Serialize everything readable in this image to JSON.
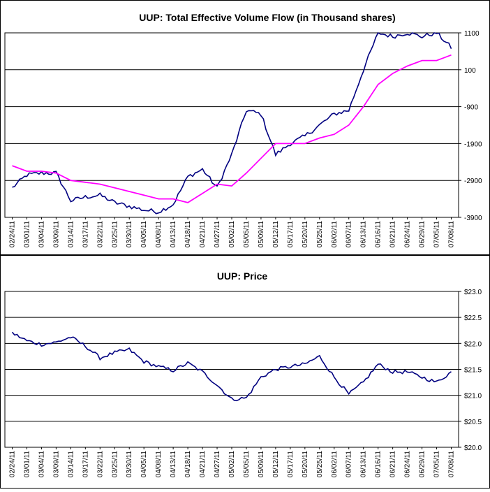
{
  "chart_data": [
    {
      "type": "line",
      "title": "UUP: Total Effective Volume Flow (in Thousand shares)",
      "xlabel": "",
      "ylabel": "",
      "ylim": [
        -3900,
        1100
      ],
      "y_ticks": [
        "1100",
        "100",
        "-900",
        "-1900",
        "-2900",
        "-3900"
      ],
      "y_side": "right",
      "grid": "horizontal",
      "x_tick_labels": [
        "02/24/11",
        "03/01/11",
        "03/04/11",
        "03/09/11",
        "03/14/11",
        "03/17/11",
        "03/22/11",
        "03/25/11",
        "03/30/11",
        "04/05/11",
        "04/08/11",
        "04/13/11",
        "04/18/11",
        "04/21/11",
        "04/27/11",
        "05/02/11",
        "05/05/11",
        "05/09/11",
        "05/12/11",
        "05/17/11",
        "05/20/11",
        "05/25/11",
        "06/02/11",
        "06/07/11",
        "06/13/11",
        "06/16/11",
        "06/21/11",
        "06/24/11",
        "06/29/11",
        "07/05/11",
        "07/08/11"
      ],
      "colors": {
        "series": "#000080",
        "moving_average": "#ff00ff"
      },
      "series": [
        {
          "role": "volume-flow",
          "x": [
            "02/24/11",
            "03/01/11",
            "03/04/11",
            "03/09/11",
            "03/14/11",
            "03/17/11",
            "03/22/11",
            "03/25/11",
            "03/30/11",
            "04/05/11",
            "04/08/11",
            "04/13/11",
            "04/18/11",
            "04/21/11",
            "04/27/11",
            "05/02/11",
            "05/05/11",
            "05/09/11",
            "05/12/11",
            "05/17/11",
            "05/20/11",
            "05/25/11",
            "06/02/11",
            "06/07/11",
            "06/13/11",
            "06/16/11",
            "06/21/11",
            "06/24/11",
            "06/29/11",
            "07/05/11",
            "07/08/11"
          ],
          "values": [
            -3100,
            -2750,
            -2700,
            -2700,
            -3450,
            -3350,
            -3300,
            -3500,
            -3600,
            -3700,
            -3750,
            -3550,
            -2800,
            -2600,
            -3100,
            -2200,
            -1000,
            -1100,
            -2200,
            -1900,
            -1700,
            -1400,
            -1100,
            -1000,
            100,
            1100,
            1000,
            1100,
            1000,
            1100,
            700
          ],
          "moving_average": [
            -2500,
            -2650,
            -2650,
            -2700,
            -2900,
            -2950,
            -3000,
            -3100,
            -3200,
            -3300,
            -3400,
            -3400,
            -3500,
            -3250,
            -3000,
            -3050,
            -2700,
            -2300,
            -1900,
            -1900,
            -1900,
            -1750,
            -1650,
            -1400,
            -900,
            -300,
            0,
            200,
            350,
            350,
            500
          ]
        }
      ]
    },
    {
      "type": "line",
      "title": "UUP: Price",
      "xlabel": "",
      "ylabel": "",
      "ylim": [
        20.0,
        23.0
      ],
      "y_ticks": [
        "$23.0",
        "$22.5",
        "$22.0",
        "$21.5",
        "$21.0",
        "$20.5",
        "$20.0"
      ],
      "y_side": "right",
      "grid": "horizontal",
      "x_tick_labels": [
        "02/24/11",
        "03/01/11",
        "03/04/11",
        "03/09/11",
        "03/14/11",
        "03/17/11",
        "03/22/11",
        "03/25/11",
        "03/30/11",
        "04/05/11",
        "04/08/11",
        "04/13/11",
        "04/18/11",
        "04/21/11",
        "04/27/11",
        "05/02/11",
        "05/05/11",
        "05/09/11",
        "05/12/11",
        "05/17/11",
        "05/20/11",
        "05/25/11",
        "06/02/11",
        "06/07/11",
        "06/13/11",
        "06/16/11",
        "06/21/11",
        "06/24/11",
        "06/29/11",
        "07/05/11",
        "07/08/11"
      ],
      "colors": {
        "series": "#000080"
      },
      "series": [
        {
          "role": "price",
          "x": [
            "02/24/11",
            "03/01/11",
            "03/04/11",
            "03/09/11",
            "03/14/11",
            "03/17/11",
            "03/22/11",
            "03/25/11",
            "03/30/11",
            "04/05/11",
            "04/08/11",
            "04/13/11",
            "04/18/11",
            "04/21/11",
            "04/27/11",
            "05/02/11",
            "05/05/11",
            "05/09/11",
            "05/12/11",
            "05/17/11",
            "05/20/11",
            "05/25/11",
            "06/02/11",
            "06/07/11",
            "06/13/11",
            "06/16/11",
            "06/21/11",
            "06/24/11",
            "06/29/11",
            "07/05/11",
            "07/08/11"
          ],
          "values": [
            22.2,
            22.05,
            21.98,
            22.02,
            22.12,
            21.95,
            21.72,
            21.82,
            21.88,
            21.65,
            21.55,
            21.48,
            21.62,
            21.45,
            21.2,
            20.92,
            20.95,
            21.35,
            21.5,
            21.55,
            21.6,
            21.75,
            21.35,
            21.02,
            21.25,
            21.6,
            21.45,
            21.45,
            21.35,
            21.25,
            21.45
          ]
        }
      ]
    }
  ]
}
